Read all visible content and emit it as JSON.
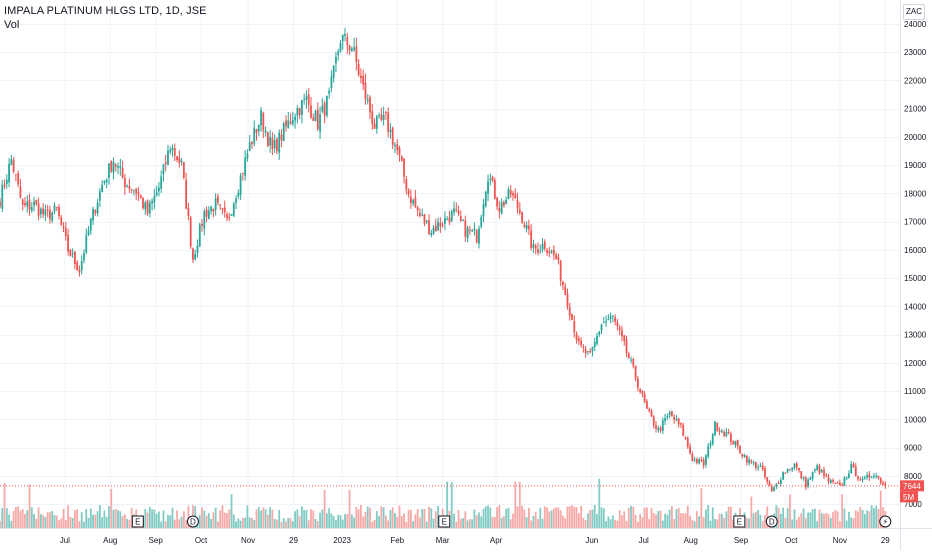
{
  "legend": {
    "title": "IMPALA PLATINUM HLGS LTD, 1D, JSE",
    "volume_label": "Vol"
  },
  "axis": {
    "currency": "ZAC",
    "price_labels": [
      "24000",
      "23000",
      "22000",
      "21000",
      "20000",
      "19000",
      "18000",
      "17000",
      "16000",
      "15000",
      "14000",
      "13000",
      "12000",
      "11000",
      "10000",
      "9000",
      "8000",
      "7000"
    ],
    "time_labels": [
      "Jul",
      "Aug",
      "Sep",
      "Oct",
      "Nov",
      "29",
      "2023",
      "Feb",
      "Mar",
      "Apr",
      "Jun",
      "Jul",
      "Aug",
      "Sep",
      "Oct",
      "Nov",
      "29"
    ]
  },
  "badges": {
    "last_price": "7644",
    "last_volume": "5M"
  },
  "events": [
    {
      "type": "earnings",
      "label": "E",
      "date": "2022-08-25"
    },
    {
      "type": "dividend",
      "label": "D",
      "date": "2022-09-28"
    },
    {
      "type": "earnings",
      "label": "E",
      "date": "2023-03-02"
    },
    {
      "type": "earnings",
      "label": "E",
      "date": "2023-08-31"
    },
    {
      "type": "dividend",
      "label": "D",
      "date": "2023-09-20"
    },
    {
      "type": "split",
      "label": "⚡",
      "date": "2023-11-29"
    }
  ],
  "colors": {
    "up": "#26a69a",
    "down": "#ef5350",
    "up_volume": "#80cbc4",
    "down_volume": "#f7a9a7",
    "grid": "#f0f3fa",
    "axis_text": "#131722",
    "badge_red": "#ef5350"
  },
  "chart_data": {
    "type": "candlestick",
    "title": "IMPALA PLATINUM HLGS LTD, 1D, JSE",
    "currency": "ZAC",
    "x_range": [
      "2022-06-01",
      "2023-12-05"
    ],
    "y_range": [
      6000,
      24000
    ],
    "grid": true,
    "last_close": 7644,
    "series": [
      {
        "name": "price",
        "approx_close_path": [
          [
            "2022-06-01",
            17800
          ],
          [
            "2022-06-08",
            19200
          ],
          [
            "2022-06-15",
            17500
          ],
          [
            "2022-06-22",
            17600
          ],
          [
            "2022-06-29",
            17200
          ],
          [
            "2022-07-06",
            17400
          ],
          [
            "2022-07-13",
            16000
          ],
          [
            "2022-07-20",
            15300
          ],
          [
            "2022-07-27",
            17000
          ],
          [
            "2022-08-03",
            18300
          ],
          [
            "2022-08-10",
            19200
          ],
          [
            "2022-08-17",
            18400
          ],
          [
            "2022-08-24",
            18100
          ],
          [
            "2022-08-31",
            17300
          ],
          [
            "2022-09-07",
            18200
          ],
          [
            "2022-09-14",
            19700
          ],
          [
            "2022-09-21",
            19000
          ],
          [
            "2022-09-28",
            15700
          ],
          [
            "2022-10-05",
            17300
          ],
          [
            "2022-10-12",
            17600
          ],
          [
            "2022-10-19",
            17000
          ],
          [
            "2022-10-26",
            18300
          ],
          [
            "2022-11-02",
            19700
          ],
          [
            "2022-11-09",
            20700
          ],
          [
            "2022-11-16",
            19500
          ],
          [
            "2022-11-23",
            20200
          ],
          [
            "2022-11-30",
            20900
          ],
          [
            "2022-12-07",
            21300
          ],
          [
            "2022-12-14",
            20500
          ],
          [
            "2022-12-21",
            21400
          ],
          [
            "2022-12-28",
            23500
          ],
          [
            "2023-01-04",
            23200
          ],
          [
            "2023-01-11",
            21700
          ],
          [
            "2023-01-18",
            20400
          ],
          [
            "2023-01-25",
            20600
          ],
          [
            "2023-02-01",
            19500
          ],
          [
            "2023-02-08",
            18000
          ],
          [
            "2023-02-15",
            17200
          ],
          [
            "2023-02-22",
            16700
          ],
          [
            "2023-03-01",
            17000
          ],
          [
            "2023-03-08",
            17300
          ],
          [
            "2023-03-15",
            16700
          ],
          [
            "2023-03-22",
            16500
          ],
          [
            "2023-03-29",
            18700
          ],
          [
            "2023-04-05",
            17500
          ],
          [
            "2023-04-12",
            18000
          ],
          [
            "2023-04-19",
            17200
          ],
          [
            "2023-04-26",
            16000
          ],
          [
            "2023-05-03",
            16200
          ],
          [
            "2023-05-10",
            15700
          ],
          [
            "2023-05-17",
            14200
          ],
          [
            "2023-05-24",
            12600
          ],
          [
            "2023-05-31",
            12200
          ],
          [
            "2023-06-07",
            13400
          ],
          [
            "2023-06-14",
            13600
          ],
          [
            "2023-06-21",
            12600
          ],
          [
            "2023-06-28",
            11500
          ],
          [
            "2023-07-05",
            10300
          ],
          [
            "2023-07-12",
            9600
          ],
          [
            "2023-07-19",
            10200
          ],
          [
            "2023-07-26",
            9700
          ],
          [
            "2023-08-02",
            8600
          ],
          [
            "2023-08-09",
            8400
          ],
          [
            "2023-08-16",
            9800
          ],
          [
            "2023-08-23",
            9500
          ],
          [
            "2023-08-30",
            9000
          ],
          [
            "2023-09-06",
            8500
          ],
          [
            "2023-09-13",
            8300
          ],
          [
            "2023-09-20",
            7400
          ],
          [
            "2023-09-27",
            8100
          ],
          [
            "2023-10-04",
            8400
          ],
          [
            "2023-10-11",
            7700
          ],
          [
            "2023-10-18",
            8300
          ],
          [
            "2023-10-25",
            7800
          ],
          [
            "2023-11-01",
            7600
          ],
          [
            "2023-11-08",
            8300
          ],
          [
            "2023-11-15",
            7800
          ],
          [
            "2023-11-22",
            8100
          ],
          [
            "2023-11-29",
            7644
          ]
        ]
      },
      {
        "name": "volume",
        "note_units": "shares",
        "max_visible": 9000000
      }
    ]
  }
}
